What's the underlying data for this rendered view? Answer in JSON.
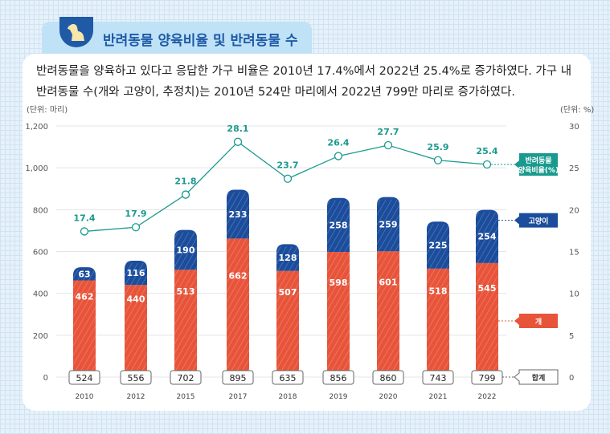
{
  "header": {
    "title": "반려동물 양육비율 및 반려동물 수",
    "icon": "dog-icon"
  },
  "lead": "반려동물을 양육하고 있다고 응답한 가구 비율은 2010년 17.4%에서 2022년 25.4%로 증가하였다. 가구 내 반려동물 수(개와 고양이, 추정치)는 2010년 524만 마리에서 2022년 799만 마리로 증가하였다.",
  "chart_data": {
    "type": "bar+line",
    "categories": [
      "2010",
      "2012",
      "2015",
      "2017",
      "2018",
      "2019",
      "2020",
      "2021",
      "2022"
    ],
    "left_unit": "(단위: 마리)",
    "right_unit": "(단위: %)",
    "left_ticks": [
      "0",
      "200",
      "400",
      "600",
      "800",
      "1,000",
      "1,200"
    ],
    "right_ticks": [
      "0",
      "5",
      "10",
      "15",
      "20",
      "25",
      "30"
    ],
    "ylim_left": [
      0,
      1200
    ],
    "ylim_right": [
      0,
      30
    ],
    "series": [
      {
        "name": "개",
        "values": [
          462,
          440,
          513,
          662,
          507,
          598,
          601,
          518,
          545
        ],
        "color": "#e8543a"
      },
      {
        "name": "고양이",
        "values": [
          63,
          116,
          190,
          233,
          128,
          258,
          259,
          225,
          254
        ],
        "color": "#1b4d9c"
      },
      {
        "name": "합계",
        "values": [
          524,
          556,
          702,
          895,
          635,
          856,
          860,
          743,
          799
        ]
      },
      {
        "name": "반려동물 양육비율(%)",
        "values": [
          17.4,
          17.9,
          21.8,
          28.1,
          23.7,
          26.4,
          27.7,
          25.9,
          25.4
        ],
        "color": "#1a9a8e"
      }
    ],
    "grid": true
  }
}
